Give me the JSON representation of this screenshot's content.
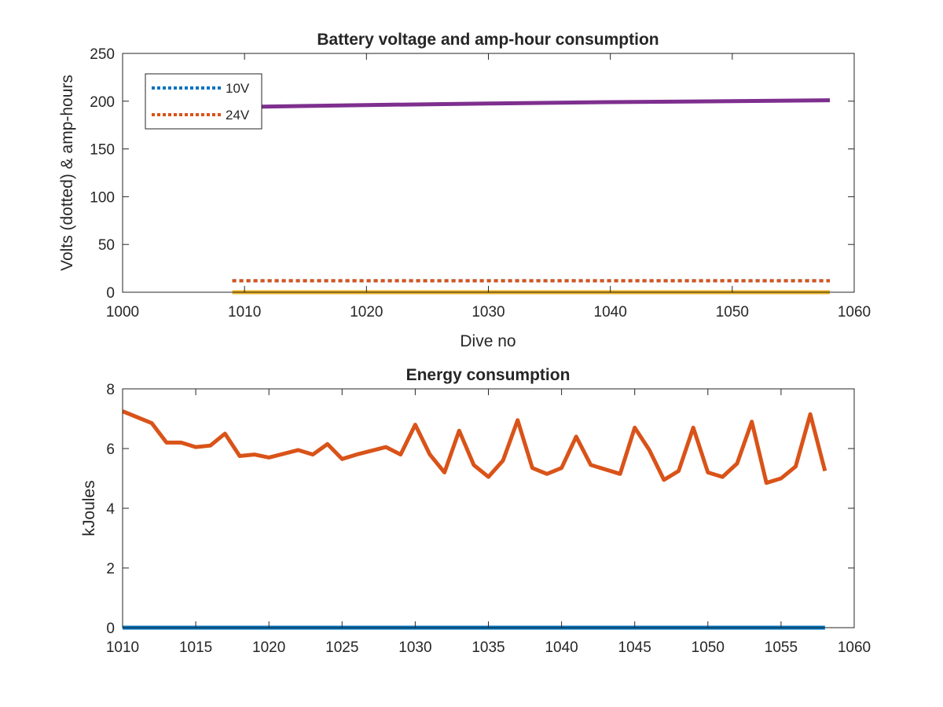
{
  "chart_data": [
    {
      "type": "line",
      "title": "Battery voltage and amp-hour consumption",
      "xlabel": "Dive no",
      "ylabel": "Volts (dotted) & amp-hours",
      "xlim": [
        1000,
        1060
      ],
      "ylim": [
        0,
        250
      ],
      "xticks": [
        1000,
        1010,
        1020,
        1030,
        1040,
        1050,
        1060
      ],
      "yticks": [
        0,
        50,
        100,
        150,
        200,
        250
      ],
      "legend_position": "top-left",
      "grid": false,
      "series": [
        {
          "name": "10V",
          "style": "dotted",
          "color": "#0072BD",
          "x": [
            1009,
            1058
          ],
          "y": [
            12,
            12
          ]
        },
        {
          "name": "24V",
          "style": "dotted",
          "color": "#D95319",
          "x": [
            1009,
            1058
          ],
          "y": [
            12,
            12
          ]
        },
        {
          "style": "solid",
          "color": "#EDB120",
          "x": [
            1009,
            1058
          ],
          "y": [
            0,
            0
          ]
        },
        {
          "style": "solid",
          "color": "#7E2F8E",
          "x": [
            1010,
            1020,
            1030,
            1040,
            1050,
            1058
          ],
          "y": [
            194,
            196,
            197.5,
            199,
            200,
            201
          ]
        }
      ]
    },
    {
      "type": "line",
      "title": "Energy consumption",
      "xlabel": "",
      "ylabel": "kJoules",
      "xlim": [
        1010,
        1060
      ],
      "ylim": [
        0,
        8
      ],
      "xticks": [
        1010,
        1015,
        1020,
        1025,
        1030,
        1035,
        1040,
        1045,
        1050,
        1055,
        1060
      ],
      "yticks": [
        0,
        2,
        4,
        6,
        8
      ],
      "grid": false,
      "series": [
        {
          "style": "solid",
          "color": "#0072BD",
          "x": [
            1010,
            1058
          ],
          "y": [
            0,
            0
          ]
        },
        {
          "style": "solid",
          "color": "#D95319",
          "x": [
            1010,
            1012,
            1013,
            1014,
            1015,
            1016,
            1017,
            1018,
            1019,
            1020,
            1022,
            1023,
            1024,
            1025,
            1026,
            1028,
            1029,
            1030,
            1031,
            1032,
            1033,
            1034,
            1035,
            1036,
            1037,
            1038,
            1039,
            1040,
            1041,
            1042,
            1044,
            1045,
            1046,
            1047,
            1048,
            1049,
            1050,
            1051,
            1052,
            1053,
            1054,
            1055,
            1056,
            1057,
            1058
          ],
          "y": [
            7.25,
            6.85,
            6.2,
            6.2,
            6.05,
            6.1,
            6.5,
            5.75,
            5.8,
            5.7,
            5.95,
            5.8,
            6.15,
            5.65,
            5.8,
            6.05,
            5.8,
            6.8,
            5.8,
            5.2,
            6.6,
            5.45,
            5.05,
            5.6,
            6.95,
            5.35,
            5.15,
            5.35,
            6.4,
            5.45,
            5.15,
            6.7,
            5.95,
            4.95,
            5.25,
            6.7,
            5.2,
            5.05,
            5.5,
            6.9,
            4.85,
            5.0,
            5.4,
            7.15,
            5.25
          ]
        }
      ]
    }
  ]
}
